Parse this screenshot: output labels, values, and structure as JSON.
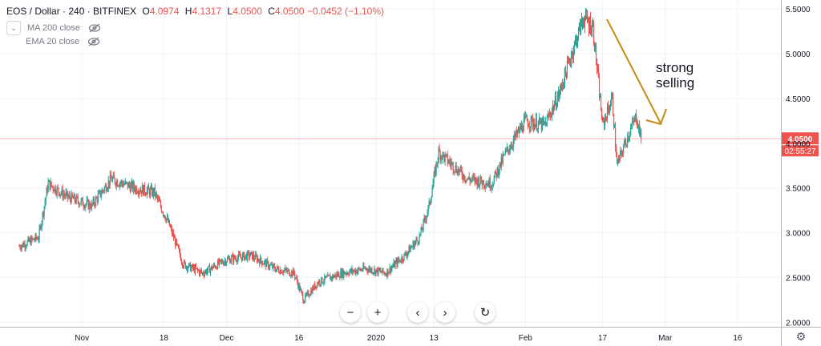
{
  "header": {
    "symbol": "EOS / Dollar · 240 · BITFINEX",
    "open_label": "O",
    "open": "4.0974",
    "high_label": "H",
    "high": "4.1317",
    "low_label": "L",
    "low": "4.0500",
    "close_label": "C",
    "close": "4.0500",
    "change": "−0.0452 (−1.10%)"
  },
  "indicators": [
    {
      "label": "MA 200 close"
    },
    {
      "label": "EMA 20 close"
    }
  ],
  "price_tag": "4.0500",
  "countdown": "02:55:27",
  "annotation": {
    "line1": "strong",
    "line2": "selling"
  },
  "toolbar": {
    "zoom_out": "−",
    "zoom_in": "+",
    "prev": "‹",
    "next": "›",
    "reset": "↻"
  },
  "colors": {
    "up": "#26a69a",
    "down": "#ef5350",
    "arrow": "#c78a19",
    "price_line": "#ef5350"
  },
  "chart_data": {
    "type": "candlestick",
    "ylim": [
      1.95,
      5.6
    ],
    "y_ticks": [
      "2.0000",
      "2.5000",
      "3.0000",
      "3.5000",
      "4.0000",
      "4.5000",
      "5.0000",
      "5.5000"
    ],
    "x_ticks": [
      "Nov",
      "18",
      "Dec",
      "16",
      "2020",
      "13",
      "Feb",
      "17",
      "Mar",
      "16"
    ],
    "last_price": 4.05,
    "approx_closes": [
      {
        "date": "2019-10-19",
        "value": 2.85
      },
      {
        "date": "2019-10-23",
        "value": 2.95
      },
      {
        "date": "2019-10-25",
        "value": 3.55
      },
      {
        "date": "2019-10-29",
        "value": 3.4
      },
      {
        "date": "2019-11-03",
        "value": 3.3
      },
      {
        "date": "2019-11-07",
        "value": 3.6
      },
      {
        "date": "2019-11-12",
        "value": 3.5
      },
      {
        "date": "2019-11-16",
        "value": 3.45
      },
      {
        "date": "2019-11-19",
        "value": 3.1
      },
      {
        "date": "2019-11-22",
        "value": 2.65
      },
      {
        "date": "2019-11-26",
        "value": 2.55
      },
      {
        "date": "2019-12-01",
        "value": 2.7
      },
      {
        "date": "2019-12-06",
        "value": 2.75
      },
      {
        "date": "2019-12-11",
        "value": 2.6
      },
      {
        "date": "2019-12-15",
        "value": 2.55
      },
      {
        "date": "2019-12-17",
        "value": 2.25
      },
      {
        "date": "2019-12-20",
        "value": 2.45
      },
      {
        "date": "2019-12-25",
        "value": 2.55
      },
      {
        "date": "2019-12-30",
        "value": 2.6
      },
      {
        "date": "2020-01-03",
        "value": 2.55
      },
      {
        "date": "2020-01-07",
        "value": 2.75
      },
      {
        "date": "2020-01-10",
        "value": 2.95
      },
      {
        "date": "2020-01-12",
        "value": 3.3
      },
      {
        "date": "2020-01-14",
        "value": 3.9
      },
      {
        "date": "2020-01-17",
        "value": 3.75
      },
      {
        "date": "2020-01-20",
        "value": 3.6
      },
      {
        "date": "2020-01-25",
        "value": 3.55
      },
      {
        "date": "2020-01-28",
        "value": 3.9
      },
      {
        "date": "2020-02-01",
        "value": 4.25
      },
      {
        "date": "2020-02-05",
        "value": 4.2
      },
      {
        "date": "2020-02-08",
        "value": 4.55
      },
      {
        "date": "2020-02-10",
        "value": 4.9
      },
      {
        "date": "2020-02-13",
        "value": 5.4
      },
      {
        "date": "2020-02-15",
        "value": 5.3
      },
      {
        "date": "2020-02-17",
        "value": 4.2
      },
      {
        "date": "2020-02-19",
        "value": 4.5
      },
      {
        "date": "2020-02-20",
        "value": 3.75
      },
      {
        "date": "2020-02-22",
        "value": 4.05
      },
      {
        "date": "2020-02-24",
        "value": 4.3
      },
      {
        "date": "2020-02-25",
        "value": 4.05
      }
    ]
  }
}
